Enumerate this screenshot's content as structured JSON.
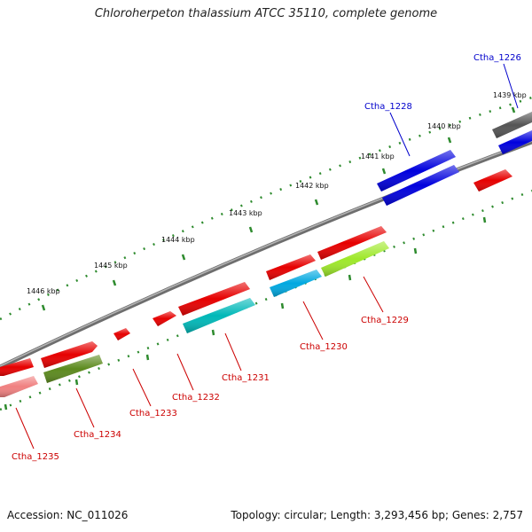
{
  "title": "Chloroherpeton thalassium ATCC 35110, complete genome",
  "footer": {
    "accession": "Accession: NC_011026",
    "topology": "Topology: circular; Length: 3,293,456 bp; Genes: 2,757"
  },
  "colors": {
    "backbone": "#8a8a8a",
    "tick": "#2e8b2e",
    "label_red": "#cc0000",
    "label_blue": "#0000cc"
  },
  "kbp_labels": [
    "1446 kbp",
    "1445 kbp",
    "1444 kbp",
    "1443 kbp",
    "1442 kbp",
    "1441 kbp",
    "1440 kbp",
    "1439 kbp"
  ],
  "genes": [
    {
      "id": "Ctha_1226",
      "color": "#0000cc"
    },
    {
      "id": "Ctha_1228",
      "color": "#0000cc"
    },
    {
      "id": "Ctha_1229",
      "color": "#cc0000"
    },
    {
      "id": "Ctha_1230",
      "color": "#cc0000"
    },
    {
      "id": "Ctha_1231",
      "color": "#cc0000"
    },
    {
      "id": "Ctha_1232",
      "color": "#cc0000"
    },
    {
      "id": "Ctha_1233",
      "color": "#cc0000"
    },
    {
      "id": "Ctha_1234",
      "color": "#cc0000"
    },
    {
      "id": "Ctha_1235",
      "color": "#cc0000"
    }
  ]
}
